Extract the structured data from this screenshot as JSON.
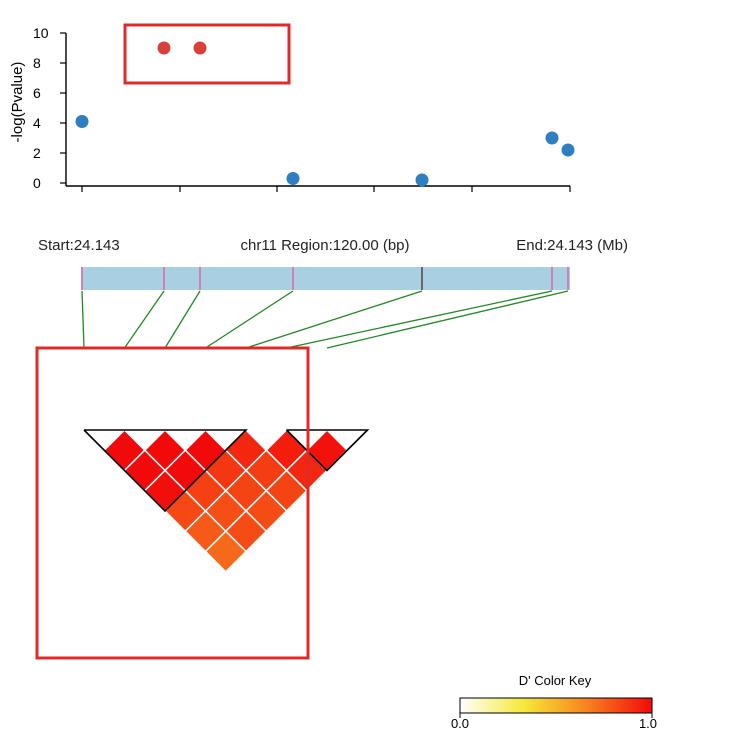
{
  "chart_data": [
    {
      "type": "scatter",
      "title": "",
      "xlabel": "",
      "ylabel": "-log(Pvalue)",
      "ylim": [
        0,
        10
      ],
      "yticks": [
        "10",
        "8",
        "6",
        "4",
        "2",
        "0"
      ],
      "grid": false,
      "points": [
        {
          "x": 0,
          "y": 4.1,
          "color": "#2e7ec1"
        },
        {
          "x": 1,
          "y": 9.0,
          "color": "#d9403a"
        },
        {
          "x": 2,
          "y": 9.0,
          "color": "#d9403a"
        },
        {
          "x": 3,
          "y": 0.3,
          "color": "#2e7ec1"
        },
        {
          "x": 4,
          "y": 0.2,
          "color": "#2e7ec1"
        },
        {
          "x": 5,
          "y": 3.0,
          "color": "#2e7ec1"
        },
        {
          "x": 6,
          "y": 2.2,
          "color": "#2e7ec1"
        }
      ],
      "highlight_points": [
        1,
        2
      ]
    },
    {
      "type": "heatmap",
      "subtype": "ld-triangle",
      "region": {
        "start_label": "Start:24.143",
        "center_label": "chr11 Region:120.00 (bp)",
        "end_label": "End:24.143 (Mb)"
      },
      "snp_count": 7,
      "values": [
        [
          1.0,
          1.0,
          1.0,
          0.92,
          0.95,
          0.98
        ],
        [
          1.0,
          1.0,
          0.88,
          0.86,
          0.92
        ],
        [
          0.99,
          0.85,
          0.84,
          0.84
        ],
        [
          0.83,
          0.81,
          0.82
        ],
        [
          0.78,
          0.82
        ],
        [
          0.74
        ]
      ],
      "block_groups": [
        [
          0,
          1,
          2,
          3
        ],
        [
          5,
          6
        ]
      ],
      "highlight_snps": [
        0,
        1,
        2,
        3
      ],
      "color_key": {
        "title": "D' Color Key",
        "min_label": "0.0",
        "max_label": "1.0",
        "colors": [
          "#ffffff",
          "#f5e93a",
          "#f7831f",
          "#f20a0a"
        ]
      }
    }
  ]
}
